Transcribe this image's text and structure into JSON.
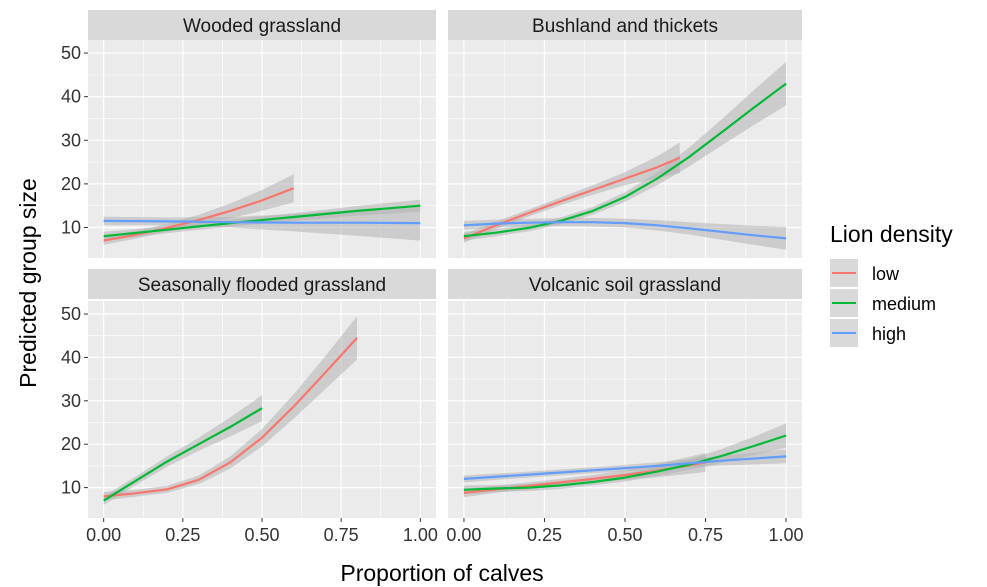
{
  "chart_data": {
    "type": "line",
    "xlabel": "Proportion of calves",
    "ylabel": "Predicted group size",
    "xlim": [
      0,
      1
    ],
    "ylim": [
      3,
      53
    ],
    "x_ticks": [
      "0.00",
      "0.25",
      "0.50",
      "0.75",
      "1.00"
    ],
    "y_ticks": [
      "10",
      "20",
      "30",
      "40",
      "50"
    ],
    "grid": true,
    "legend": {
      "title": "Lion density",
      "placement": "right",
      "entries": [
        "low",
        "medium",
        "high"
      ]
    },
    "colors": {
      "low": "#F8766D",
      "medium": "#00BA38",
      "high": "#619CFF",
      "ribbon": "#b3b3b3",
      "panel_bg": "#EBEBEB",
      "strip_bg": "#D9D9D9"
    },
    "panels": [
      {
        "title": "Wooded grassland",
        "series": [
          {
            "name": "low",
            "x": [
              0,
              0.1,
              0.2,
              0.3,
              0.4,
              0.5,
              0.6
            ],
            "y": [
              7,
              8.3,
              9.9,
              11.7,
              13.8,
              16.2,
              19
            ],
            "se": [
              1,
              0.9,
              0.9,
              1.2,
              1.7,
              2.4,
              3.2
            ]
          },
          {
            "name": "medium",
            "x": [
              0,
              0.2,
              0.4,
              0.6,
              0.8,
              1.0
            ],
            "y": [
              8,
              9.5,
              11,
              12.4,
              13.8,
              15
            ],
            "se": [
              1,
              0.8,
              0.8,
              0.9,
              1.1,
              1.4
            ]
          },
          {
            "name": "high",
            "x": [
              0,
              0.2,
              0.4,
              0.6,
              0.8,
              1.0
            ],
            "y": [
              11.5,
              11.4,
              11.2,
              11.1,
              11.1,
              11
            ],
            "se": [
              1,
              0.9,
              1.2,
              2,
              3,
              4
            ]
          }
        ]
      },
      {
        "title": "Bushland and thickets",
        "series": [
          {
            "name": "low",
            "x": [
              0,
              0.1,
              0.2,
              0.3,
              0.4,
              0.5,
              0.6,
              0.67
            ],
            "y": [
              7.5,
              10.5,
              13.3,
              16,
              18.6,
              21.2,
              23.8,
              26
            ],
            "se": [
              1,
              0.9,
              0.8,
              0.9,
              1.1,
              1.5,
              2.5,
              3.5
            ]
          },
          {
            "name": "medium",
            "x": [
              0,
              0.1,
              0.2,
              0.3,
              0.4,
              0.5,
              0.6,
              0.7,
              0.8,
              0.9,
              1.0
            ],
            "y": [
              8,
              8.8,
              9.9,
              11.5,
              13.8,
              17,
              21.2,
              26.2,
              31.8,
              37.5,
              43
            ],
            "se": [
              1,
              0.8,
              0.8,
              0.8,
              0.9,
              1.1,
              1.5,
              2.2,
              3,
              4,
              5
            ]
          },
          {
            "name": "high",
            "x": [
              0,
              0.1,
              0.2,
              0.3,
              0.4,
              0.5,
              0.6,
              0.7,
              0.8,
              0.9,
              1.0
            ],
            "y": [
              10.5,
              10.9,
              11.1,
              11.2,
              11.2,
              11,
              10.5,
              9.8,
              9,
              8.2,
              7.5
            ],
            "se": [
              1,
              0.9,
              0.9,
              0.9,
              1,
              1,
              1.2,
              1.4,
              1.8,
              2.2,
              2.6
            ]
          }
        ]
      },
      {
        "title": "Seasonally flooded grassland",
        "series": [
          {
            "name": "low",
            "x": [
              0,
              0.1,
              0.2,
              0.3,
              0.4,
              0.5,
              0.6,
              0.7,
              0.8
            ],
            "y": [
              8,
              8.7,
              9.6,
              11.8,
              15.8,
              21.5,
              28.7,
              36.5,
              44.5
            ],
            "se": [
              1,
              0.8,
              0.8,
              1,
              1.4,
              2,
              2.8,
              3.8,
              5
            ]
          },
          {
            "name": "medium",
            "x": [
              0,
              0.1,
              0.2,
              0.3,
              0.4,
              0.5
            ],
            "y": [
              7,
              11.5,
              16,
              20,
              24,
              28.3
            ],
            "se": [
              1,
              1,
              1.2,
              1.5,
              2.2,
              3
            ]
          }
        ]
      },
      {
        "title": "Volcanic soil grassland",
        "series": [
          {
            "name": "low",
            "x": [
              0,
              0.1,
              0.2,
              0.3,
              0.4,
              0.5,
              0.6,
              0.75
            ],
            "y": [
              8.8,
              9.6,
              10.4,
              11.2,
              12,
              12.9,
              13.9,
              15.8
            ],
            "se": [
              1,
              0.8,
              0.8,
              0.8,
              0.9,
              1.1,
              1.5,
              2.2
            ]
          },
          {
            "name": "medium",
            "x": [
              0,
              0.1,
              0.2,
              0.3,
              0.4,
              0.5,
              0.6,
              0.7,
              0.8,
              0.9,
              1.0
            ],
            "y": [
              9.5,
              9.8,
              10,
              10.5,
              11.3,
              12.3,
              13.7,
              15.3,
              17.3,
              19.6,
              22
            ],
            "se": [
              1,
              0.8,
              0.8,
              0.8,
              0.8,
              0.9,
              1,
              1.2,
              1.6,
              2.1,
              2.8
            ]
          },
          {
            "name": "high",
            "x": [
              0,
              0.2,
              0.4,
              0.6,
              0.8,
              1.0
            ],
            "y": [
              12,
              13,
              14,
              15,
              16.2,
              17.2
            ],
            "se": [
              0.8,
              0.7,
              0.7,
              0.8,
              1.1,
              1.6
            ]
          }
        ]
      }
    ]
  }
}
